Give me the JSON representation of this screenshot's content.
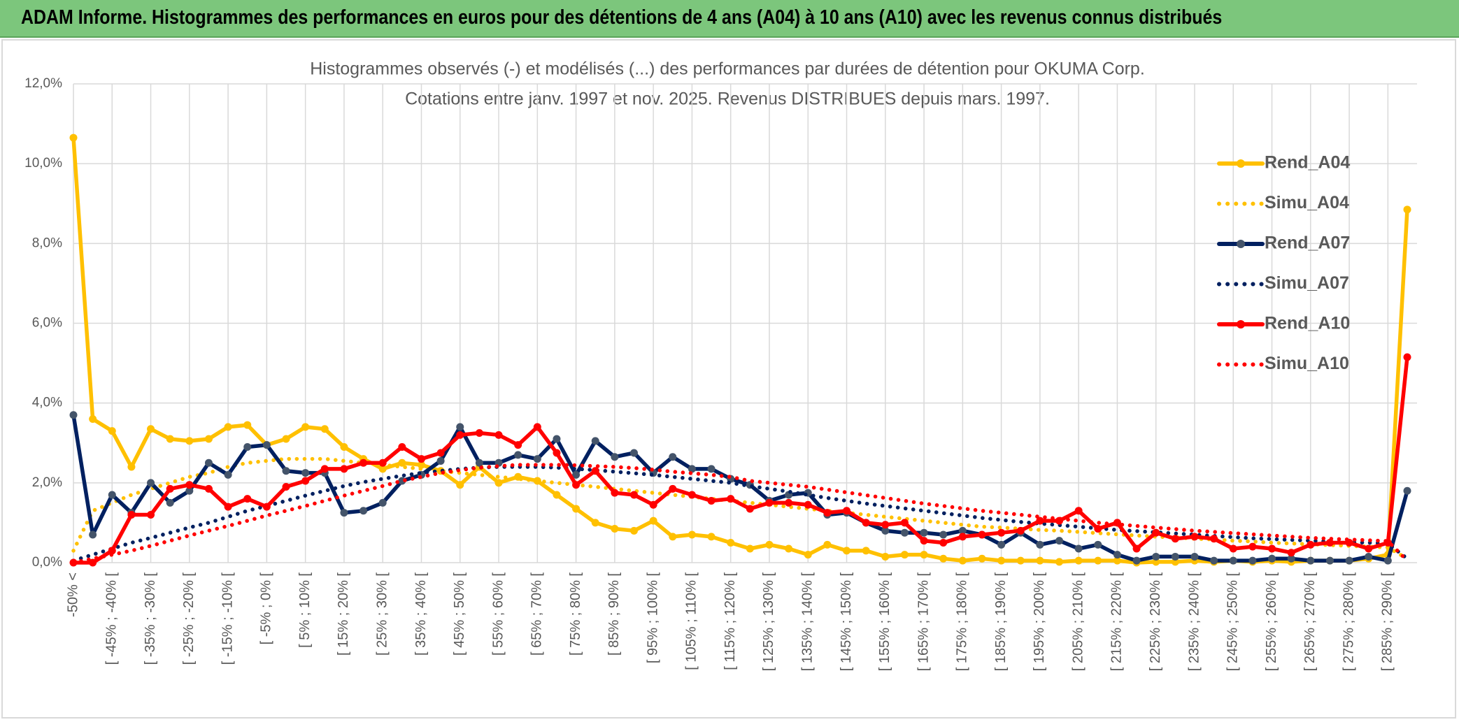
{
  "header": {
    "title": "ADAM Informe. Histogrammes des performances en euros pour des détentions de 4 ans (A04) à 10 ans (A10) avec les revenus connus distribués"
  },
  "chart_data": {
    "type": "line",
    "title": "Histogrammes observés (-) et modélisés (...) des performances par durées de détention pour OKUMA Corp.",
    "subtitle": "Cotations entre janv. 1997 et nov. 2025. Revenus DISTRIBUES depuis mars. 1997.",
    "categories": [
      "-50% <",
      null,
      "[ -45% ; -40% [",
      null,
      "[ -35% ; -30% [",
      null,
      "[ -25% ; -20% [",
      null,
      "[ -15% ; -10% [",
      null,
      "[ -5% ; 0% [",
      null,
      "[ 5% ; 10% [",
      null,
      "[ 15% ; 20% [",
      null,
      "[ 25% ; 30% [",
      null,
      "[ 35% ; 40% [",
      null,
      "[ 45% ; 50% [",
      null,
      "[ 55% ; 60% [",
      null,
      "[ 65% ; 70% [",
      null,
      "[ 75% ; 80% [",
      null,
      "[ 85% ; 90% [",
      null,
      "[ 95% ; 100% [",
      null,
      "[ 105% ; 110% [",
      null,
      "[ 115% ; 120% [",
      null,
      "[ 125% ; 130% [",
      null,
      "[ 135% ; 140% [",
      null,
      "[ 145% ; 150% [",
      null,
      "[ 155% ; 160% [",
      null,
      "[ 165% ; 170% [",
      null,
      "[ 175% ; 180% [",
      null,
      "[ 185% ; 190% [",
      null,
      "[ 195% ; 200% [",
      null,
      "[ 205% ; 210% [",
      null,
      "[ 215% ; 220% [",
      null,
      "[ 225% ; 230% [",
      null,
      "[ 235% ; 240% [",
      null,
      "[ 245% ; 250% [",
      null,
      "[ 255% ; 260% [",
      null,
      "[ 265% ; 270% [",
      null,
      "[ 275% ; 280% [",
      null,
      "[ 285% ; 290% [",
      null
    ],
    "ylim": [
      0,
      12
    ],
    "yticks": [
      {
        "value": 0,
        "label": "0,0%"
      },
      {
        "value": 2,
        "label": "2,0%"
      },
      {
        "value": 4,
        "label": "4,0%"
      },
      {
        "value": 6,
        "label": "6,0%"
      },
      {
        "value": 8,
        "label": "8,0%"
      },
      {
        "value": 10,
        "label": "10,0%"
      },
      {
        "value": 12,
        "label": "12,0%"
      }
    ],
    "grid": true,
    "legend": "right",
    "series": [
      {
        "name": "Rend_A04",
        "color": "#FFC000",
        "style": "solid",
        "markers": true,
        "values": [
          10.65,
          3.6,
          3.3,
          2.4,
          3.35,
          3.1,
          3.05,
          3.1,
          3.4,
          3.45,
          2.95,
          3.1,
          3.4,
          3.35,
          2.9,
          2.6,
          2.35,
          2.5,
          2.45,
          2.3,
          1.95,
          2.4,
          2.0,
          2.15,
          2.05,
          1.7,
          1.35,
          1.0,
          0.85,
          0.8,
          1.05,
          0.65,
          0.7,
          0.65,
          0.5,
          0.35,
          0.45,
          0.35,
          0.2,
          0.45,
          0.3,
          0.3,
          0.15,
          0.2,
          0.2,
          0.1,
          0.05,
          0.1,
          0.05,
          0.05,
          0.05,
          0.02,
          0.05,
          0.05,
          0.05,
          0.0,
          0.02,
          0.02,
          0.05,
          0.02,
          0.05,
          0.02,
          0.05,
          0.02,
          0.05,
          0.05,
          0.05,
          0.1,
          0.2,
          8.85
        ]
      },
      {
        "name": "Simu_A04",
        "color": "#FFC000",
        "style": "dotted",
        "markers": false,
        "values": [
          0.3,
          1.3,
          1.5,
          1.7,
          1.85,
          2.0,
          2.15,
          2.25,
          2.4,
          2.5,
          2.55,
          2.6,
          2.6,
          2.6,
          2.55,
          2.5,
          2.45,
          2.4,
          2.35,
          2.3,
          2.25,
          2.2,
          2.15,
          2.1,
          2.05,
          2.0,
          1.95,
          1.9,
          1.85,
          1.8,
          1.75,
          1.7,
          1.65,
          1.6,
          1.55,
          1.5,
          1.45,
          1.4,
          1.35,
          1.3,
          1.25,
          1.2,
          1.15,
          1.1,
          1.05,
          1.0,
          0.95,
          0.9,
          0.88,
          0.85,
          0.82,
          0.8,
          0.77,
          0.74,
          0.71,
          0.68,
          0.65,
          0.63,
          0.6,
          0.58,
          0.55,
          0.53,
          0.5,
          0.48,
          0.46,
          0.44,
          0.42,
          0.4,
          0.38,
          0.1
        ]
      },
      {
        "name": "Rend_A07",
        "color": "#002060",
        "marker_color": "#44546A",
        "style": "solid",
        "markers": true,
        "values": [
          3.7,
          0.7,
          1.7,
          1.25,
          2.0,
          1.5,
          1.8,
          2.5,
          2.2,
          2.9,
          2.95,
          2.3,
          2.25,
          2.25,
          1.25,
          1.3,
          1.5,
          2.05,
          2.2,
          2.55,
          3.4,
          2.5,
          2.5,
          2.7,
          2.6,
          3.1,
          2.2,
          3.05,
          2.65,
          2.75,
          2.25,
          2.65,
          2.35,
          2.35,
          2.1,
          1.95,
          1.55,
          1.7,
          1.75,
          1.2,
          1.25,
          1.0,
          0.8,
          0.75,
          0.75,
          0.7,
          0.8,
          0.7,
          0.45,
          0.75,
          0.45,
          0.55,
          0.35,
          0.45,
          0.2,
          0.05,
          0.15,
          0.15,
          0.15,
          0.05,
          0.05,
          0.05,
          0.1,
          0.1,
          0.05,
          0.05,
          0.05,
          0.15,
          0.05,
          1.8
        ]
      },
      {
        "name": "Simu_A07",
        "color": "#002060",
        "style": "dotted",
        "markers": false,
        "values": [
          0.05,
          0.2,
          0.35,
          0.5,
          0.62,
          0.75,
          0.88,
          1.0,
          1.15,
          1.3,
          1.42,
          1.55,
          1.68,
          1.8,
          1.92,
          2.02,
          2.1,
          2.18,
          2.25,
          2.3,
          2.35,
          2.38,
          2.4,
          2.4,
          2.4,
          2.38,
          2.35,
          2.32,
          2.28,
          2.24,
          2.2,
          2.15,
          2.1,
          2.05,
          2.0,
          1.92,
          1.85,
          1.78,
          1.7,
          1.62,
          1.55,
          1.48,
          1.42,
          1.36,
          1.3,
          1.24,
          1.18,
          1.12,
          1.07,
          1.02,
          0.98,
          0.94,
          0.9,
          0.86,
          0.82,
          0.79,
          0.76,
          0.73,
          0.7,
          0.67,
          0.64,
          0.61,
          0.59,
          0.57,
          0.55,
          0.53,
          0.51,
          0.5,
          0.48,
          0.1
        ]
      },
      {
        "name": "Rend_A10",
        "color": "#FF0000",
        "style": "solid",
        "markers": true,
        "values": [
          0,
          0,
          0.3,
          1.2,
          1.2,
          1.85,
          1.95,
          1.85,
          1.4,
          1.6,
          1.4,
          1.9,
          2.05,
          2.35,
          2.35,
          2.5,
          2.5,
          2.9,
          2.6,
          2.75,
          3.2,
          3.25,
          3.2,
          2.95,
          3.4,
          2.75,
          1.95,
          2.3,
          1.75,
          1.7,
          1.45,
          1.85,
          1.7,
          1.55,
          1.6,
          1.35,
          1.5,
          1.5,
          1.45,
          1.25,
          1.3,
          1.0,
          0.95,
          1.0,
          0.55,
          0.5,
          0.65,
          0.7,
          0.75,
          0.8,
          1.05,
          1.05,
          1.3,
          0.85,
          1.0,
          0.35,
          0.75,
          0.6,
          0.65,
          0.6,
          0.35,
          0.4,
          0.35,
          0.25,
          0.45,
          0.5,
          0.5,
          0.35,
          0.5,
          5.15
        ]
      },
      {
        "name": "Simu_A10",
        "color": "#FF0000",
        "style": "dotted",
        "markers": false,
        "values": [
          0.0,
          0.1,
          0.2,
          0.3,
          0.42,
          0.55,
          0.68,
          0.8,
          0.92,
          1.05,
          1.18,
          1.3,
          1.42,
          1.55,
          1.68,
          1.8,
          1.92,
          2.05,
          2.15,
          2.25,
          2.32,
          2.38,
          2.42,
          2.45,
          2.45,
          2.45,
          2.44,
          2.42,
          2.4,
          2.37,
          2.33,
          2.28,
          2.24,
          2.2,
          2.15,
          2.05,
          2.0,
          1.95,
          1.9,
          1.83,
          1.76,
          1.69,
          1.62,
          1.55,
          1.48,
          1.42,
          1.36,
          1.3,
          1.25,
          1.2,
          1.15,
          1.1,
          1.05,
          1.0,
          0.96,
          0.92,
          0.88,
          0.84,
          0.8,
          0.77,
          0.74,
          0.71,
          0.68,
          0.65,
          0.62,
          0.6,
          0.58,
          0.56,
          0.54,
          0.05
        ]
      }
    ]
  }
}
